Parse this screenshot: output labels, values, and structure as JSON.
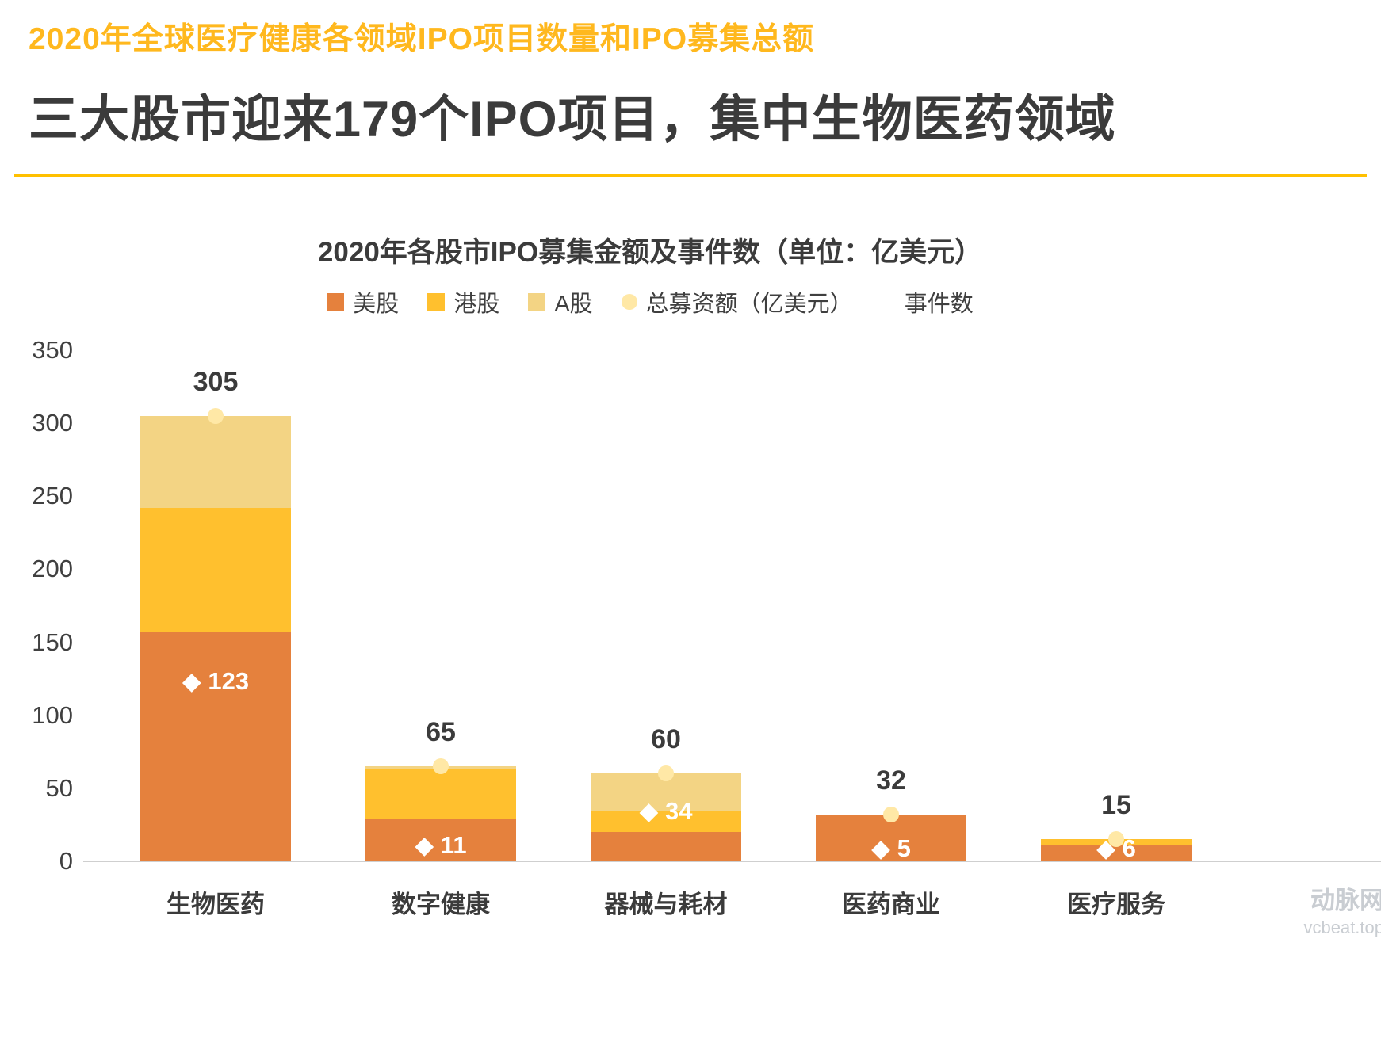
{
  "header": {
    "subtitle": "2020年全球医疗健康各领域IPO项目数量和IPO募集总额",
    "headline": "三大股市迎来179个IPO项目，集中生物医药领域"
  },
  "watermark": {
    "line1": "动脉网",
    "line2": "vcbeat.top"
  },
  "colors": {
    "accent_yellow": "#ffc000",
    "subtitle_text": "#ffb81e",
    "headline_text": "#3b3b3b",
    "us_orange": "#e5813d",
    "hk_gold": "#ffc02e",
    "a_tan": "#f3d484",
    "total_dot": "#ffe8a6"
  },
  "chart_data": {
    "type": "bar",
    "stacked": true,
    "title": "2020年各股市IPO募集金额及事件数（单位：亿美元）",
    "categories": [
      "生物医药",
      "数字健康",
      "器械与耗材",
      "医药商业",
      "医疗服务"
    ],
    "series": [
      {
        "name": "美股",
        "color": "#e5813d",
        "values": [
          157,
          29,
          20,
          32,
          11
        ]
      },
      {
        "name": "港股",
        "color": "#ffc02e",
        "values": [
          85,
          34,
          14,
          0,
          4
        ]
      },
      {
        "name": "A股",
        "color": "#f3d484",
        "values": [
          63,
          2,
          26,
          0,
          0
        ]
      }
    ],
    "totals": [
      305,
      65,
      60,
      32,
      15
    ],
    "total_marker": {
      "name": "总募资额（亿美元）",
      "color": "#ffe8a6"
    },
    "events": {
      "name": "事件数",
      "marker": "◆",
      "values": [
        123,
        11,
        34,
        5,
        6
      ]
    },
    "ylim": [
      0,
      350
    ],
    "yticks": [
      0,
      50,
      100,
      150,
      200,
      250,
      300,
      350
    ],
    "grid": false,
    "legend_position": "top",
    "legend_items": [
      {
        "key": "us",
        "label": "美股",
        "marker": "sq",
        "color": "#e5813d"
      },
      {
        "key": "hk",
        "label": "港股",
        "marker": "sq",
        "color": "#ffc02e"
      },
      {
        "key": "a",
        "label": "A股",
        "marker": "sq",
        "color": "#f3d484"
      },
      {
        "key": "total",
        "label": "总募资额（亿美元）",
        "marker": "dot",
        "color": "#ffe8a6"
      },
      {
        "key": "events",
        "label": "事件数",
        "marker": "diamond",
        "color": "#ffffff"
      }
    ]
  }
}
